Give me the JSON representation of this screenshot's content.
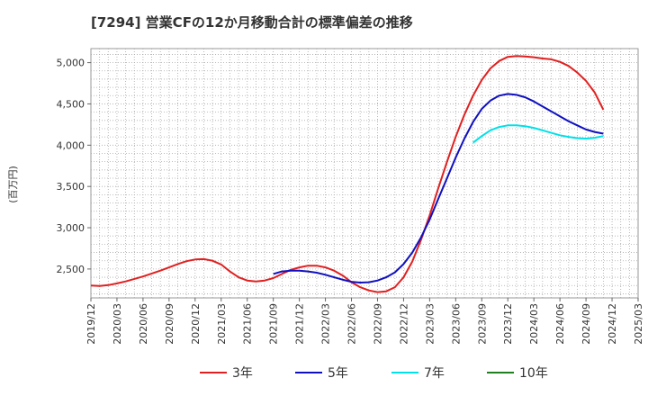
{
  "chart_data": {
    "type": "line",
    "title": "[7294]  営業CFの12か月移動合計の標準偏差の推移",
    "ylabel": "(百万円)",
    "xlabel": "",
    "ylim": [
      2150,
      5170
    ],
    "yticks": [
      2500,
      3000,
      3500,
      4000,
      4500,
      5000
    ],
    "ytick_labels": [
      "2,500",
      "3,000",
      "3,500",
      "4,000",
      "4,500",
      "5,000"
    ],
    "x_start": "2019-12",
    "x_end": "2025-03",
    "xtick_labels": [
      "2019/12",
      "2020/03",
      "2020/06",
      "2020/09",
      "2020/12",
      "2021/03",
      "2021/06",
      "2021/09",
      "2021/12",
      "2022/03",
      "2022/06",
      "2022/09",
      "2022/12",
      "2023/03",
      "2023/06",
      "2023/09",
      "2023/12",
      "2024/03",
      "2024/06",
      "2024/09",
      "2024/12",
      "2025/03"
    ],
    "grid": true,
    "legend_position": "bottom",
    "series": [
      {
        "name": "3年",
        "color": "#e02020",
        "points": [
          [
            "2019-12",
            2300
          ],
          [
            "2020-01",
            2295
          ],
          [
            "2020-02",
            2305
          ],
          [
            "2020-03",
            2325
          ],
          [
            "2020-04",
            2350
          ],
          [
            "2020-05",
            2380
          ],
          [
            "2020-06",
            2410
          ],
          [
            "2020-07",
            2445
          ],
          [
            "2020-08",
            2480
          ],
          [
            "2020-09",
            2520
          ],
          [
            "2020-10",
            2560
          ],
          [
            "2020-11",
            2595
          ],
          [
            "2020-12",
            2615
          ],
          [
            "2021-01",
            2620
          ],
          [
            "2021-02",
            2600
          ],
          [
            "2021-03",
            2555
          ],
          [
            "2021-04",
            2470
          ],
          [
            "2021-05",
            2400
          ],
          [
            "2021-06",
            2360
          ],
          [
            "2021-07",
            2350
          ],
          [
            "2021-08",
            2360
          ],
          [
            "2021-09",
            2390
          ],
          [
            "2021-10",
            2440
          ],
          [
            "2021-11",
            2490
          ],
          [
            "2021-12",
            2520
          ],
          [
            "2022-01",
            2540
          ],
          [
            "2022-02",
            2540
          ],
          [
            "2022-03",
            2520
          ],
          [
            "2022-04",
            2480
          ],
          [
            "2022-05",
            2420
          ],
          [
            "2022-06",
            2340
          ],
          [
            "2022-07",
            2280
          ],
          [
            "2022-08",
            2240
          ],
          [
            "2022-09",
            2220
          ],
          [
            "2022-10",
            2230
          ],
          [
            "2022-11",
            2280
          ],
          [
            "2022-12",
            2400
          ],
          [
            "2023-01",
            2590
          ],
          [
            "2023-02",
            2850
          ],
          [
            "2023-03",
            3150
          ],
          [
            "2023-04",
            3480
          ],
          [
            "2023-05",
            3800
          ],
          [
            "2023-06",
            4100
          ],
          [
            "2023-07",
            4370
          ],
          [
            "2023-08",
            4600
          ],
          [
            "2023-09",
            4790
          ],
          [
            "2023-10",
            4930
          ],
          [
            "2023-11",
            5020
          ],
          [
            "2023-12",
            5070
          ],
          [
            "2024-01",
            5080
          ],
          [
            "2024-02",
            5075
          ],
          [
            "2024-03",
            5065
          ],
          [
            "2024-04",
            5050
          ],
          [
            "2024-05",
            5040
          ],
          [
            "2024-06",
            5010
          ],
          [
            "2024-07",
            4960
          ],
          [
            "2024-08",
            4880
          ],
          [
            "2024-09",
            4780
          ],
          [
            "2024-10",
            4640
          ],
          [
            "2024-11",
            4430
          ]
        ]
      },
      {
        "name": "5年",
        "color": "#1010c0",
        "points": [
          [
            "2021-09",
            2440
          ],
          [
            "2021-10",
            2470
          ],
          [
            "2021-11",
            2480
          ],
          [
            "2021-12",
            2480
          ],
          [
            "2022-01",
            2470
          ],
          [
            "2022-02",
            2455
          ],
          [
            "2022-03",
            2430
          ],
          [
            "2022-04",
            2400
          ],
          [
            "2022-05",
            2370
          ],
          [
            "2022-06",
            2345
          ],
          [
            "2022-07",
            2335
          ],
          [
            "2022-08",
            2340
          ],
          [
            "2022-09",
            2360
          ],
          [
            "2022-10",
            2400
          ],
          [
            "2022-11",
            2460
          ],
          [
            "2022-12",
            2560
          ],
          [
            "2023-01",
            2700
          ],
          [
            "2023-02",
            2880
          ],
          [
            "2023-03",
            3100
          ],
          [
            "2023-04",
            3350
          ],
          [
            "2023-05",
            3600
          ],
          [
            "2023-06",
            3850
          ],
          [
            "2023-07",
            4080
          ],
          [
            "2023-08",
            4280
          ],
          [
            "2023-09",
            4440
          ],
          [
            "2023-10",
            4540
          ],
          [
            "2023-11",
            4600
          ],
          [
            "2023-12",
            4620
          ],
          [
            "2024-01",
            4610
          ],
          [
            "2024-02",
            4580
          ],
          [
            "2024-03",
            4530
          ],
          [
            "2024-04",
            4470
          ],
          [
            "2024-05",
            4410
          ],
          [
            "2024-06",
            4350
          ],
          [
            "2024-07",
            4290
          ],
          [
            "2024-08",
            4240
          ],
          [
            "2024-09",
            4190
          ],
          [
            "2024-10",
            4160
          ],
          [
            "2024-11",
            4140
          ]
        ]
      },
      {
        "name": "7年",
        "color": "#00e0e8",
        "points": [
          [
            "2023-08",
            4030
          ],
          [
            "2023-09",
            4110
          ],
          [
            "2023-10",
            4180
          ],
          [
            "2023-11",
            4220
          ],
          [
            "2023-12",
            4240
          ],
          [
            "2024-01",
            4240
          ],
          [
            "2024-02",
            4230
          ],
          [
            "2024-03",
            4210
          ],
          [
            "2024-04",
            4180
          ],
          [
            "2024-05",
            4150
          ],
          [
            "2024-06",
            4120
          ],
          [
            "2024-07",
            4100
          ],
          [
            "2024-08",
            4085
          ],
          [
            "2024-09",
            4080
          ],
          [
            "2024-10",
            4090
          ],
          [
            "2024-11",
            4110
          ]
        ]
      },
      {
        "name": "10年",
        "color": "#208020",
        "points": []
      }
    ]
  }
}
